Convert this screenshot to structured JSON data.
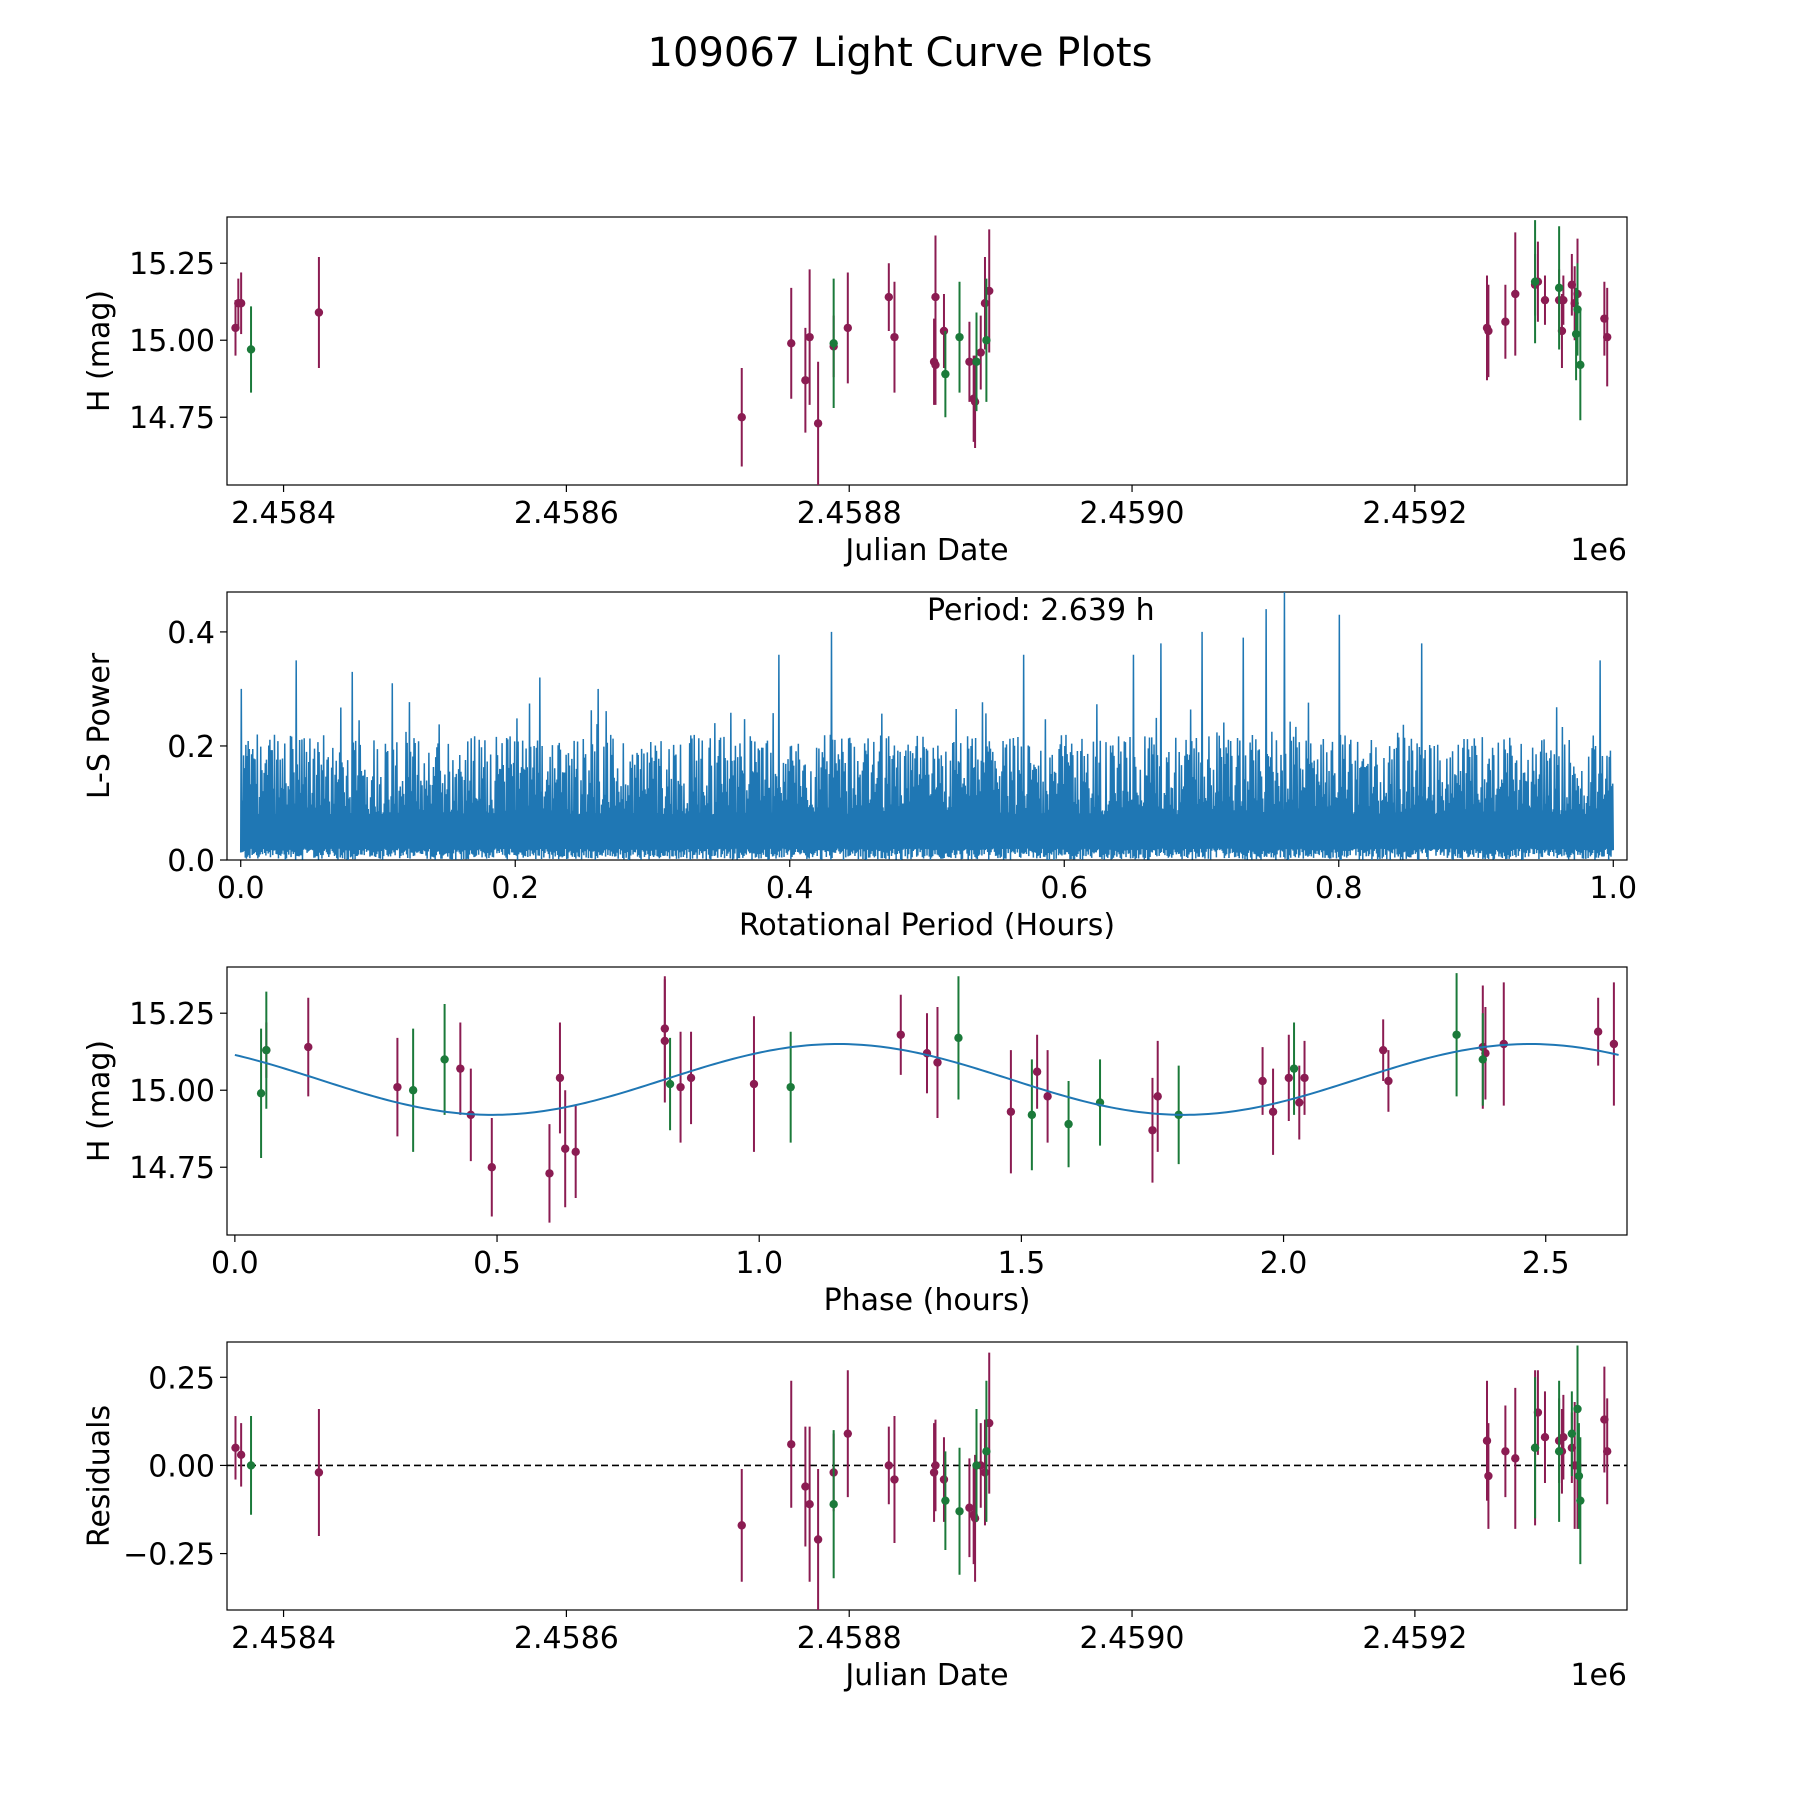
{
  "title": "109067 Light Curve Plots",
  "colors": {
    "magenta": "#8b1c52",
    "green": "#1b7a3a",
    "line": "#1f77b4",
    "axis": "#000000"
  },
  "chart_data": [
    {
      "id": "lightcurve",
      "type": "scatter",
      "xlabel": "Julian Date",
      "ylabel": "H (mag)",
      "offset_label": "1e6",
      "xlim": [
        2.45836,
        2.45935
      ],
      "ylim": [
        14.53,
        15.4
      ],
      "xticks": [
        2.4584,
        2.4586,
        2.4588,
        2.459,
        2.4592
      ],
      "xtick_labels": [
        "2.4584",
        "2.4586",
        "2.4588",
        "2.4590",
        "2.4592"
      ],
      "yticks": [
        14.75,
        15.0,
        15.25
      ],
      "ytick_labels": [
        "14.75",
        "15.00",
        "15.25"
      ],
      "series": [
        {
          "name": "magenta band",
          "color": "#8b1c52",
          "points": [
            [
              2.458366,
              15.04,
              0.09
            ],
            [
              2.458368,
              15.12,
              0.08
            ],
            [
              2.45837,
              15.12,
              0.1
            ],
            [
              2.458425,
              15.09,
              0.18
            ],
            [
              2.458724,
              14.75,
              0.16
            ],
            [
              2.458759,
              14.99,
              0.18
            ],
            [
              2.458769,
              14.87,
              0.17
            ],
            [
              2.458772,
              15.01,
              0.22
            ],
            [
              2.458778,
              14.73,
              0.2
            ],
            [
              2.458789,
              14.98,
              0.1
            ],
            [
              2.458799,
              15.04,
              0.18
            ],
            [
              2.458828,
              15.14,
              0.11
            ],
            [
              2.458832,
              15.01,
              0.18
            ],
            [
              2.45886,
              14.93,
              0.14
            ],
            [
              2.458861,
              14.92,
              0.13
            ],
            [
              2.458861,
              15.14,
              0.2
            ],
            [
              2.458867,
              15.03,
              0.12
            ],
            [
              2.458885,
              14.93,
              0.13
            ],
            [
              2.458888,
              14.81,
              0.14
            ],
            [
              2.458889,
              14.8,
              0.15
            ],
            [
              2.458893,
              14.96,
              0.12
            ],
            [
              2.458896,
              15.12,
              0.15
            ],
            [
              2.458899,
              15.16,
              0.2
            ],
            [
              2.459251,
              15.04,
              0.17
            ],
            [
              2.459252,
              15.03,
              0.15
            ],
            [
              2.459264,
              15.06,
              0.12
            ],
            [
              2.459271,
              15.15,
              0.2
            ],
            [
              2.459285,
              15.18,
              0.1
            ],
            [
              2.459287,
              15.19,
              0.13
            ],
            [
              2.459292,
              15.13,
              0.08
            ],
            [
              2.459302,
              15.13,
              0.1
            ],
            [
              2.459304,
              15.03,
              0.12
            ],
            [
              2.459305,
              15.13,
              0.08
            ],
            [
              2.459311,
              15.18,
              0.1
            ],
            [
              2.459313,
              15.12,
              0.12
            ],
            [
              2.459315,
              15.15,
              0.18
            ],
            [
              2.459334,
              15.07,
              0.12
            ],
            [
              2.459336,
              15.01,
              0.16
            ]
          ]
        },
        {
          "name": "green band",
          "color": "#1b7a3a",
          "points": [
            [
              2.458377,
              14.97,
              0.14
            ],
            [
              2.458789,
              14.99,
              0.21
            ],
            [
              2.458868,
              14.89,
              0.14
            ],
            [
              2.458878,
              15.01,
              0.18
            ],
            [
              2.45889,
              14.93,
              0.16
            ],
            [
              2.458897,
              15.0,
              0.2
            ],
            [
              2.459285,
              15.19,
              0.2
            ],
            [
              2.459302,
              15.17,
              0.2
            ],
            [
              2.459315,
              15.1,
              0.15
            ],
            [
              2.459314,
              15.02,
              0.15
            ],
            [
              2.459317,
              14.92,
              0.18
            ]
          ]
        }
      ]
    },
    {
      "id": "periodogram",
      "type": "line",
      "xlabel": "Rotational Period (Hours)",
      "ylabel": "L-S Power",
      "annotation": "Period: 2.639 h",
      "xlim": [
        -0.01,
        1.01
      ],
      "ylim": [
        0,
        0.47
      ],
      "xticks": [
        0.0,
        0.2,
        0.4,
        0.6,
        0.8,
        1.0
      ],
      "xtick_labels": [
        "0.0",
        "0.2",
        "0.4",
        "0.6",
        "0.8",
        "1.0"
      ],
      "yticks": [
        0.0,
        0.2,
        0.4
      ],
      "ytick_labels": [
        "0.0",
        "0.2",
        "0.4"
      ],
      "samples": 2400,
      "x_range": [
        0.0,
        1.0
      ],
      "typical_max": 0.2,
      "peak_power": 0.47,
      "notable_peaks": [
        [
          0.0,
          0.3
        ],
        [
          0.04,
          0.35
        ],
        [
          0.081,
          0.33
        ],
        [
          0.11,
          0.31
        ],
        [
          0.218,
          0.32
        ],
        [
          0.26,
          0.3
        ],
        [
          0.392,
          0.36
        ],
        [
          0.43,
          0.4
        ],
        [
          0.57,
          0.36
        ],
        [
          0.65,
          0.36
        ],
        [
          0.67,
          0.38
        ],
        [
          0.7,
          0.4
        ],
        [
          0.73,
          0.39
        ],
        [
          0.747,
          0.44
        ],
        [
          0.76,
          0.47
        ],
        [
          0.8,
          0.43
        ],
        [
          0.86,
          0.38
        ],
        [
          0.99,
          0.35
        ]
      ]
    },
    {
      "id": "phased",
      "type": "scatter",
      "xlabel": "Phase (hours)",
      "ylabel": "H (mag)",
      "xlim": [
        -0.015,
        2.655
      ],
      "ylim": [
        14.53,
        15.4
      ],
      "xticks": [
        0.0,
        0.5,
        1.0,
        1.5,
        2.0,
        2.5
      ],
      "xtick_labels": [
        "0.0",
        "0.5",
        "1.0",
        "1.5",
        "2.0",
        "2.5"
      ],
      "yticks": [
        14.75,
        15.0,
        15.25
      ],
      "ytick_labels": [
        "14.75",
        "15.00",
        "15.25"
      ],
      "fit": {
        "mean": 15.035,
        "amplitude": 0.115,
        "period": 2.639,
        "phase_of_peak": 1.15,
        "harmonic": 2
      },
      "series": [
        {
          "name": "magenta band",
          "color": "#8b1c52",
          "points": [
            [
              0.06,
              15.13,
              0.09
            ],
            [
              0.14,
              15.14,
              0.16
            ],
            [
              0.31,
              15.01,
              0.16
            ],
            [
              0.43,
              15.07,
              0.15
            ],
            [
              0.45,
              14.92,
              0.15
            ],
            [
              0.49,
              14.75,
              0.16
            ],
            [
              0.6,
              14.73,
              0.16
            ],
            [
              0.62,
              15.04,
              0.18
            ],
            [
              0.63,
              14.81,
              0.19
            ],
            [
              0.65,
              14.8,
              0.15
            ],
            [
              0.82,
              15.2,
              0.17
            ],
            [
              0.82,
              15.16,
              0.2
            ],
            [
              0.85,
              15.01,
              0.18
            ],
            [
              0.87,
              15.04,
              0.15
            ],
            [
              0.99,
              15.02,
              0.22
            ],
            [
              1.27,
              15.18,
              0.13
            ],
            [
              1.32,
              15.12,
              0.13
            ],
            [
              1.34,
              15.09,
              0.18
            ],
            [
              1.48,
              14.93,
              0.2
            ],
            [
              1.53,
              15.06,
              0.12
            ],
            [
              1.55,
              14.98,
              0.15
            ],
            [
              1.75,
              14.87,
              0.17
            ],
            [
              1.76,
              14.98,
              0.18
            ],
            [
              1.96,
              15.03,
              0.11
            ],
            [
              1.98,
              14.93,
              0.14
            ],
            [
              2.01,
              15.04,
              0.14
            ],
            [
              2.03,
              14.96,
              0.12
            ],
            [
              2.04,
              15.04,
              0.12
            ],
            [
              2.19,
              15.13,
              0.1
            ],
            [
              2.2,
              15.03,
              0.1
            ],
            [
              2.38,
              15.14,
              0.2
            ],
            [
              2.385,
              15.12,
              0.15
            ],
            [
              2.42,
              15.15,
              0.2
            ],
            [
              2.6,
              15.19,
              0.11
            ],
            [
              2.63,
              15.15,
              0.2
            ]
          ]
        },
        {
          "name": "green band",
          "color": "#1b7a3a",
          "points": [
            [
              0.05,
              14.99,
              0.21
            ],
            [
              0.06,
              15.13,
              0.19
            ],
            [
              0.34,
              15.0,
              0.2
            ],
            [
              0.4,
              15.1,
              0.18
            ],
            [
              0.83,
              15.02,
              0.15
            ],
            [
              1.06,
              15.01,
              0.18
            ],
            [
              1.38,
              15.17,
              0.2
            ],
            [
              1.52,
              14.92,
              0.18
            ],
            [
              1.59,
              14.89,
              0.14
            ],
            [
              1.65,
              14.96,
              0.14
            ],
            [
              1.8,
              14.92,
              0.16
            ],
            [
              2.02,
              15.07,
              0.15
            ],
            [
              2.33,
              15.18,
              0.2
            ],
            [
              2.38,
              15.1,
              0.15
            ]
          ]
        }
      ]
    },
    {
      "id": "residuals",
      "type": "scatter",
      "xlabel": "Julian Date",
      "ylabel": "Residuals",
      "offset_label": "1e6",
      "xlim": [
        2.45836,
        2.45935
      ],
      "ylim": [
        -0.41,
        0.35
      ],
      "xticks": [
        2.4584,
        2.4586,
        2.4588,
        2.459,
        2.4592
      ],
      "xtick_labels": [
        "2.4584",
        "2.4586",
        "2.4588",
        "2.4590",
        "2.4592"
      ],
      "yticks": [
        -0.25,
        0.0,
        0.25
      ],
      "ytick_labels": [
        "−0.25",
        "0.00",
        "0.25"
      ],
      "baseline": 0,
      "series": [
        {
          "name": "magenta band",
          "color": "#8b1c52",
          "points": [
            [
              2.458366,
              0.05,
              0.09
            ],
            [
              2.45837,
              0.03,
              0.09
            ],
            [
              2.458425,
              -0.02,
              0.18
            ],
            [
              2.458724,
              -0.17,
              0.16
            ],
            [
              2.458759,
              0.06,
              0.18
            ],
            [
              2.458769,
              -0.06,
              0.17
            ],
            [
              2.458772,
              -0.11,
              0.22
            ],
            [
              2.458778,
              -0.21,
              0.2
            ],
            [
              2.458789,
              -0.02,
              0.11
            ],
            [
              2.458799,
              0.09,
              0.18
            ],
            [
              2.458828,
              0.0,
              0.11
            ],
            [
              2.458832,
              -0.04,
              0.18
            ],
            [
              2.45886,
              -0.02,
              0.14
            ],
            [
              2.458861,
              0.0,
              0.13
            ],
            [
              2.458867,
              -0.04,
              0.12
            ],
            [
              2.458885,
              -0.12,
              0.14
            ],
            [
              2.458888,
              -0.14,
              0.14
            ],
            [
              2.458889,
              -0.15,
              0.18
            ],
            [
              2.458893,
              0.0,
              0.12
            ],
            [
              2.458896,
              -0.02,
              0.15
            ],
            [
              2.458899,
              0.12,
              0.2
            ],
            [
              2.459251,
              0.07,
              0.17
            ],
            [
              2.459252,
              -0.03,
              0.15
            ],
            [
              2.459264,
              0.04,
              0.13
            ],
            [
              2.459271,
              0.02,
              0.2
            ],
            [
              2.459285,
              0.05,
              0.22
            ],
            [
              2.459287,
              0.15,
              0.12
            ],
            [
              2.459292,
              0.08,
              0.13
            ],
            [
              2.459302,
              0.07,
              0.12
            ],
            [
              2.459304,
              0.04,
              0.12
            ],
            [
              2.459305,
              0.08,
              0.12
            ],
            [
              2.459311,
              0.05,
              0.1
            ],
            [
              2.459313,
              0.0,
              0.18
            ],
            [
              2.459315,
              0.0,
              0.18
            ],
            [
              2.459334,
              0.13,
              0.15
            ],
            [
              2.459336,
              0.04,
              0.15
            ]
          ]
        },
        {
          "name": "green band",
          "color": "#1b7a3a",
          "points": [
            [
              2.458377,
              0.0,
              0.14
            ],
            [
              2.458789,
              -0.11,
              0.21
            ],
            [
              2.458868,
              -0.1,
              0.14
            ],
            [
              2.458878,
              -0.13,
              0.18
            ],
            [
              2.45889,
              0.0,
              0.16
            ],
            [
              2.458897,
              0.04,
              0.2
            ],
            [
              2.459285,
              0.05,
              0.2
            ],
            [
              2.459302,
              0.04,
              0.2
            ],
            [
              2.459311,
              0.09,
              0.12
            ],
            [
              2.459315,
              0.16,
              0.18
            ],
            [
              2.459316,
              -0.03,
              0.15
            ],
            [
              2.459317,
              -0.1,
              0.18
            ]
          ]
        }
      ]
    }
  ]
}
